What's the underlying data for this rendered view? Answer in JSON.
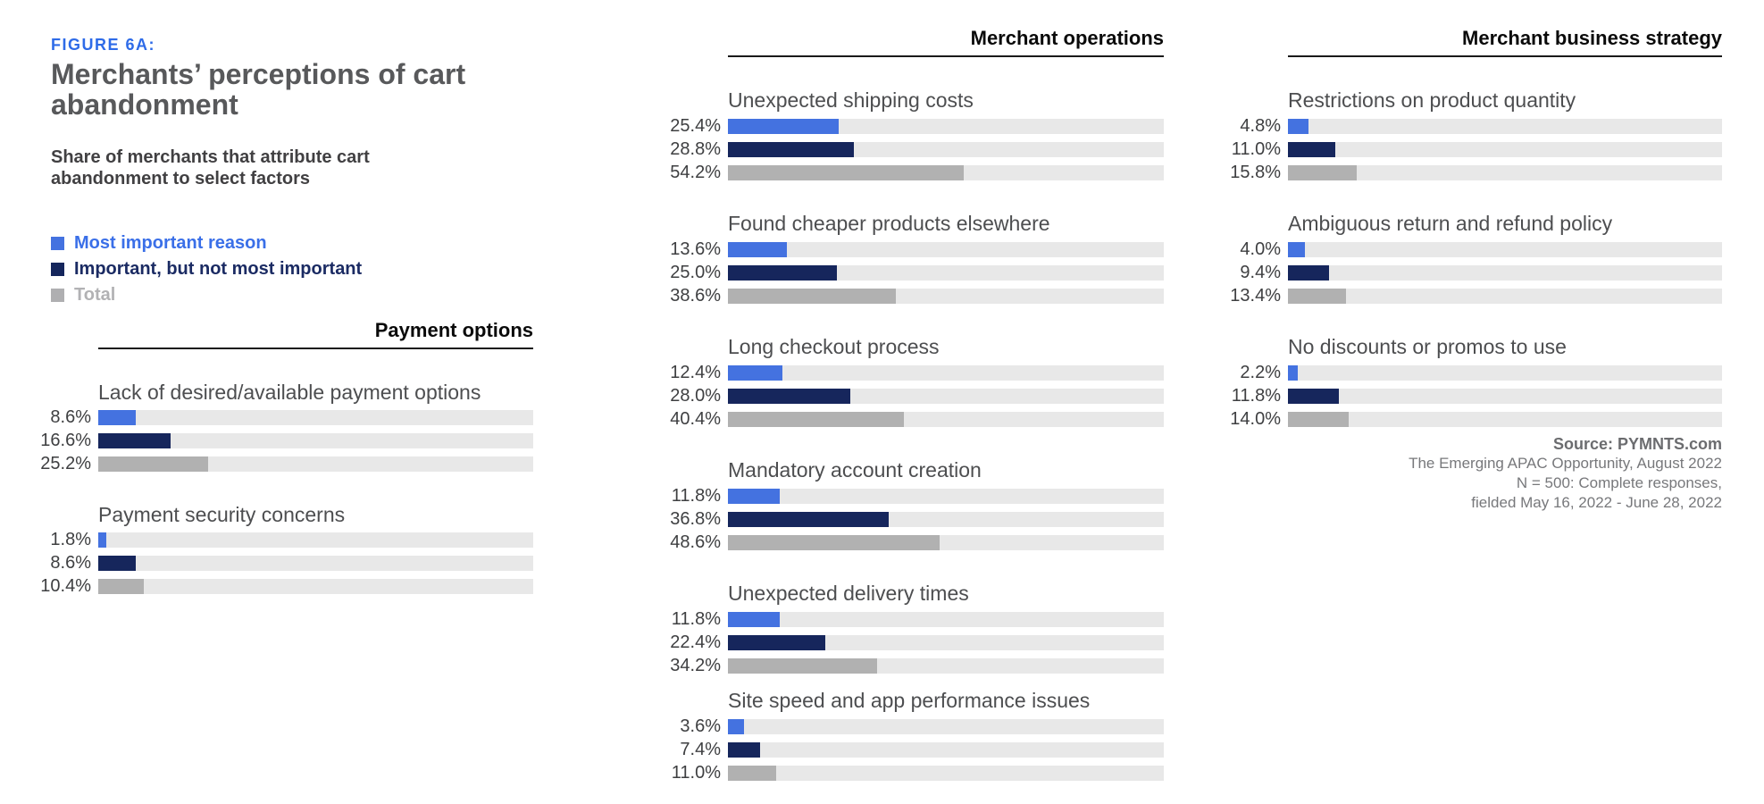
{
  "figure": {
    "label": "FIGURE 6A:",
    "title": "Merchants’ perceptions of cart abandonment",
    "subtitle": "Share of merchants that attribute cart abandonment to select factors"
  },
  "legend": [
    {
      "label": "Most important reason",
      "swatch": "#4472E0",
      "text_color": "#3A6FE8"
    },
    {
      "label": "Important, but not most important",
      "swatch": "#15265C",
      "text_color": "#1B2B63"
    },
    {
      "label": "Total",
      "swatch": "#AFAFB1",
      "text_color": "#B2B2B4"
    }
  ],
  "colors": {
    "bar_blue": "#4472E0",
    "bar_navy": "#16265C",
    "bar_gray": "#B1B1B1",
    "track_gray": "#E8E8E8",
    "accent_blue": "#2E6BE8"
  },
  "chart_data": {
    "type": "bar",
    "orientation": "horizontal",
    "axis_range": [
      0,
      100
    ],
    "unit": "%",
    "grid": false,
    "legend_position": "top-left",
    "series_names": [
      "Most important reason",
      "Important, but not most important",
      "Total"
    ],
    "series_keys": [
      "most-important-reason",
      "important-not-most-important",
      "total"
    ],
    "sections": [
      {
        "header": "Payment options",
        "groups": [
          {
            "label": "Lack of desired/available payment options",
            "values": [
              8.6,
              16.6,
              25.2
            ]
          },
          {
            "label": "Payment security concerns",
            "values": [
              1.8,
              8.6,
              10.4
            ]
          }
        ]
      },
      {
        "header": "Merchant operations",
        "groups": [
          {
            "label": "Unexpected shipping costs",
            "values": [
              25.4,
              28.8,
              54.2
            ]
          },
          {
            "label": "Found cheaper products elsewhere",
            "values": [
              13.6,
              25.0,
              38.6
            ]
          },
          {
            "label": "Long checkout process",
            "values": [
              12.4,
              28.0,
              40.4
            ]
          },
          {
            "label": "Mandatory account creation",
            "values": [
              11.8,
              36.8,
              48.6
            ]
          },
          {
            "label": "Unexpected delivery times",
            "values": [
              11.8,
              22.4,
              34.2
            ]
          },
          {
            "label": "Site speed and app performance issues",
            "values": [
              3.6,
              7.4,
              11.0
            ]
          }
        ]
      },
      {
        "header": "Merchant business strategy",
        "groups": [
          {
            "label": "Restrictions on product quantity",
            "values": [
              4.8,
              11.0,
              15.8
            ]
          },
          {
            "label": "Ambiguous return and refund policy",
            "values": [
              4.0,
              9.4,
              13.4
            ]
          },
          {
            "label": "No discounts or promos to use",
            "values": [
              2.2,
              11.8,
              14.0
            ]
          }
        ]
      }
    ]
  },
  "source": {
    "line1": "Source: PYMNTS.com",
    "line2": "The Emerging APAC Opportunity, August 2022",
    "line3": "N = 500: Complete responses,",
    "line4": "fielded May 16, 2022 - June 28, 2022"
  }
}
